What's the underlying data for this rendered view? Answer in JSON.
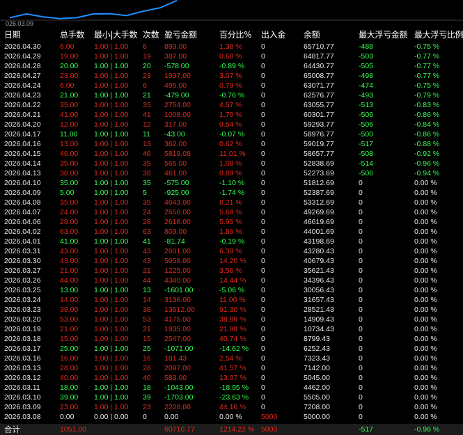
{
  "colors": {
    "profit": "#e02a1c",
    "loss": "#33ff4f",
    "neutral": "#e8e8e8",
    "background": "#000000",
    "line": "#1e90ff"
  },
  "chart": {
    "start_label": "026.03.09"
  },
  "headers": [
    "日期",
    "总手数",
    "最小|大手数",
    "次数",
    "盈亏金额",
    "百分比%",
    "出入金",
    "余额",
    "最大浮亏金额",
    "最大浮亏比例"
  ],
  "rows": [
    {
      "date": "2026.04.30",
      "lots": "6.00",
      "minmax": "1.00 | 1.00",
      "count": "6",
      "pnl": "893.00",
      "pct": "1.38 %",
      "io": "0",
      "balance": "65710.77",
      "maxdd": "-488",
      "maxddpct": "-0.75 %"
    },
    {
      "date": "2026.04.29",
      "lots": "19.00",
      "minmax": "1.00 | 1.00",
      "count": "19",
      "pnl": "387.00",
      "pct": "0.60 %",
      "io": "0",
      "balance": "64817.77",
      "maxdd": "-503",
      "maxddpct": "-0.77 %"
    },
    {
      "date": "2026.04.28",
      "lots": "20.00",
      "minmax": "1.00 | 1.00",
      "count": "20",
      "pnl": "-578.00",
      "pct": "-0.89 %",
      "io": "0",
      "balance": "64430.77",
      "maxdd": "-505",
      "maxddpct": "-0.77 %"
    },
    {
      "date": "2026.04.27",
      "lots": "23.00",
      "minmax": "1.00 | 1.00",
      "count": "23",
      "pnl": "1937.00",
      "pct": "3.07 %",
      "io": "0",
      "balance": "65008.77",
      "maxdd": "-498",
      "maxddpct": "-0.77 %"
    },
    {
      "date": "2026.04.24",
      "lots": "6.00",
      "minmax": "1.00 | 1.00",
      "count": "6",
      "pnl": "495.00",
      "pct": "0.79 %",
      "io": "0",
      "balance": "63071.77",
      "maxdd": "-474",
      "maxddpct": "-0.75 %"
    },
    {
      "date": "2026.04.23",
      "lots": "21.00",
      "minmax": "1.00 | 1.00",
      "count": "21",
      "pnl": "-479.00",
      "pct": "-0.76 %",
      "io": "0",
      "balance": "62576.77",
      "maxdd": "-493",
      "maxddpct": "-0.79 %"
    },
    {
      "date": "2026.04.22",
      "lots": "35.00",
      "minmax": "1.00 | 1.00",
      "count": "35",
      "pnl": "2754.00",
      "pct": "4.57 %",
      "io": "0",
      "balance": "63055.77",
      "maxdd": "-513",
      "maxddpct": "-0.83 %"
    },
    {
      "date": "2026.04.21",
      "lots": "41.00",
      "minmax": "1.00 | 1.00",
      "count": "41",
      "pnl": "1008.00",
      "pct": "1.70 %",
      "io": "0",
      "balance": "60301.77",
      "maxdd": "-506",
      "maxddpct": "-0.86 %"
    },
    {
      "date": "2026.04.20",
      "lots": "12.00",
      "minmax": "1.00 | 1.00",
      "count": "12",
      "pnl": "317.00",
      "pct": "0.54 %",
      "io": "0",
      "balance": "59293.77",
      "maxdd": "-506",
      "maxddpct": "-0.84 %"
    },
    {
      "date": "2026.04.17",
      "lots": "11.00",
      "minmax": "1.00 | 1.00",
      "count": "11",
      "pnl": "-43.00",
      "pct": "-0.07 %",
      "io": "0",
      "balance": "58976.77",
      "maxdd": "-500",
      "maxddpct": "-0.86 %"
    },
    {
      "date": "2026.04.16",
      "lots": "13.00",
      "minmax": "1.00 | 1.00",
      "count": "13",
      "pnl": "362.00",
      "pct": "0.62 %",
      "io": "0",
      "balance": "59019.77",
      "maxdd": "-517",
      "maxddpct": "-0.88 %"
    },
    {
      "date": "2026.04.15",
      "lots": "46.00",
      "minmax": "1.00 | 1.00",
      "count": "46",
      "pnl": "5819.08",
      "pct": "11.01 %",
      "io": "0",
      "balance": "58657.77",
      "maxdd": "-508",
      "maxddpct": "-0.92 %"
    },
    {
      "date": "2026.04.14",
      "lots": "35.00",
      "minmax": "1.00 | 1.00",
      "count": "35",
      "pnl": "565.00",
      "pct": "1.08 %",
      "io": "0",
      "balance": "52838.69",
      "maxdd": "-514",
      "maxddpct": "-0.96 %"
    },
    {
      "date": "2026.04.13",
      "lots": "38.00",
      "minmax": "1.00 | 1.00",
      "count": "38",
      "pnl": "461.00",
      "pct": "0.89 %",
      "io": "0",
      "balance": "52273.69",
      "maxdd": "-506",
      "maxddpct": "-0.94 %"
    },
    {
      "date": "2026.04.10",
      "lots": "35.00",
      "minmax": "1.00 | 1.00",
      "count": "35",
      "pnl": "-575.00",
      "pct": "-1.10 %",
      "io": "0",
      "balance": "51812.69",
      "maxdd": "0",
      "maxddpct": "0.00 %"
    },
    {
      "date": "2026.04.09",
      "lots": "5.00",
      "minmax": "1.00 | 1.00",
      "count": "5",
      "pnl": "-925.00",
      "pct": "-1.74 %",
      "io": "0",
      "balance": "52387.69",
      "maxdd": "0",
      "maxddpct": "0.00 %"
    },
    {
      "date": "2026.04.08",
      "lots": "35.00",
      "minmax": "1.00 | 1.00",
      "count": "35",
      "pnl": "4043.00",
      "pct": "8.21 %",
      "io": "0",
      "balance": "53312.69",
      "maxdd": "0",
      "maxddpct": "0.00 %"
    },
    {
      "date": "2026.04.07",
      "lots": "24.00",
      "minmax": "1.00 | 1.00",
      "count": "24",
      "pnl": "2650.00",
      "pct": "5.68 %",
      "io": "0",
      "balance": "49269.69",
      "maxdd": "0",
      "maxddpct": "0.00 %"
    },
    {
      "date": "2026.04.06",
      "lots": "28.00",
      "minmax": "1.00 | 1.00",
      "count": "28",
      "pnl": "2618.00",
      "pct": "5.95 %",
      "io": "0",
      "balance": "46619.69",
      "maxdd": "0",
      "maxddpct": "0.00 %"
    },
    {
      "date": "2026.04.02",
      "lots": "63.00",
      "minmax": "1.00 | 1.00",
      "count": "63",
      "pnl": "803.00",
      "pct": "1.86 %",
      "io": "0",
      "balance": "44001.69",
      "maxdd": "0",
      "maxddpct": "0.00 %"
    },
    {
      "date": "2026.04.01",
      "lots": "41.00",
      "minmax": "1.00 | 1.00",
      "count": "41",
      "pnl": "-81.74",
      "pct": "-0.19 %",
      "io": "0",
      "balance": "43198.69",
      "maxdd": "0",
      "maxddpct": "0.00 %"
    },
    {
      "date": "2026.03.31",
      "lots": "43.00",
      "minmax": "1.00 | 1.00",
      "count": "43",
      "pnl": "2601.00",
      "pct": "6.39 %",
      "io": "0",
      "balance": "43280.43",
      "maxdd": "0",
      "maxddpct": "0.00 %"
    },
    {
      "date": "2026.03.30",
      "lots": "43.00",
      "minmax": "1.00 | 1.00",
      "count": "43",
      "pnl": "5058.00",
      "pct": "14.20 %",
      "io": "0",
      "balance": "40679.43",
      "maxdd": "0",
      "maxddpct": "0.00 %"
    },
    {
      "date": "2026.03.27",
      "lots": "21.00",
      "minmax": "1.00 | 1.00",
      "count": "21",
      "pnl": "1225.00",
      "pct": "3.56 %",
      "io": "0",
      "balance": "35621.43",
      "maxdd": "0",
      "maxddpct": "0.00 %"
    },
    {
      "date": "2026.03.26",
      "lots": "44.00",
      "minmax": "1.00 | 1.00",
      "count": "44",
      "pnl": "4340.00",
      "pct": "14.44 %",
      "io": "0",
      "balance": "34396.43",
      "maxdd": "0",
      "maxddpct": "0.00 %"
    },
    {
      "date": "2026.03.25",
      "lots": "13.00",
      "minmax": "1.00 | 1.00",
      "count": "13",
      "pnl": "-1601.00",
      "pct": "-5.06 %",
      "io": "0",
      "balance": "30056.43",
      "maxdd": "0",
      "maxddpct": "0.00 %"
    },
    {
      "date": "2026.03.24",
      "lots": "14.00",
      "minmax": "1.00 | 1.00",
      "count": "14",
      "pnl": "3136.00",
      "pct": "11.00 %",
      "io": "0",
      "balance": "31657.43",
      "maxdd": "0",
      "maxddpct": "0.00 %"
    },
    {
      "date": "2026.03.23",
      "lots": "38.00",
      "minmax": "1.00 | 1.00",
      "count": "38",
      "pnl": "13612.00",
      "pct": "91.30 %",
      "io": "0",
      "balance": "28521.43",
      "maxdd": "0",
      "maxddpct": "0.00 %"
    },
    {
      "date": "2026.03.20",
      "lots": "53.00",
      "minmax": "1.00 | 1.00",
      "count": "53",
      "pnl": "4175.00",
      "pct": "38.89 %",
      "io": "0",
      "balance": "14909.43",
      "maxdd": "0",
      "maxddpct": "0.00 %"
    },
    {
      "date": "2026.03.19",
      "lots": "21.00",
      "minmax": "1.00 | 1.00",
      "count": "21",
      "pnl": "1935.00",
      "pct": "21.99 %",
      "io": "0",
      "balance": "10734.43",
      "maxdd": "0",
      "maxddpct": "0.00 %"
    },
    {
      "date": "2026.03.18",
      "lots": "15.00",
      "minmax": "1.00 | 1.00",
      "count": "15",
      "pnl": "2547.00",
      "pct": "40.74 %",
      "io": "0",
      "balance": "8799.43",
      "maxdd": "0",
      "maxddpct": "0.00 %"
    },
    {
      "date": "2026.03.17",
      "lots": "25.00",
      "minmax": "1.00 | 1.00",
      "count": "25",
      "pnl": "-1071.00",
      "pct": "-14.62 %",
      "io": "0",
      "balance": "6252.43",
      "maxdd": "0",
      "maxddpct": "0.00 %"
    },
    {
      "date": "2026.03.16",
      "lots": "16.00",
      "minmax": "1.00 | 1.00",
      "count": "16",
      "pnl": "181.43",
      "pct": "2.54 %",
      "io": "0",
      "balance": "7323.43",
      "maxdd": "0",
      "maxddpct": "0.00 %"
    },
    {
      "date": "2026.03.13",
      "lots": "28.00",
      "minmax": "1.00 | 1.00",
      "count": "28",
      "pnl": "2097.00",
      "pct": "41.57 %",
      "io": "0",
      "balance": "7142.00",
      "maxdd": "0",
      "maxddpct": "0.00 %"
    },
    {
      "date": "2026.03.12",
      "lots": "40.00",
      "minmax": "1.00 | 1.00",
      "count": "40",
      "pnl": "583.00",
      "pct": "13.07 %",
      "io": "0",
      "balance": "5045.00",
      "maxdd": "0",
      "maxddpct": "0.00 %"
    },
    {
      "date": "2026.03.11",
      "lots": "18.00",
      "minmax": "1.00 | 1.00",
      "count": "18",
      "pnl": "-1043.00",
      "pct": "-18.95 %",
      "io": "0",
      "balance": "4462.00",
      "maxdd": "0",
      "maxddpct": "0.00 %"
    },
    {
      "date": "2026.03.10",
      "lots": "39.00",
      "minmax": "1.00 | 1.00",
      "count": "39",
      "pnl": "-1703.00",
      "pct": "-23.63 %",
      "io": "0",
      "balance": "5505.00",
      "maxdd": "0",
      "maxddpct": "0.00 %"
    },
    {
      "date": "2026.03.09",
      "lots": "23.00",
      "minmax": "1.00 | 1.00",
      "count": "23",
      "pnl": "2208.00",
      "pct": "44.16 %",
      "io": "0",
      "balance": "7208.00",
      "maxdd": "0",
      "maxddpct": "0.00 %"
    },
    {
      "date": "2026.03.08",
      "lots": "0.00",
      "minmax": "0.00 | 0.00",
      "count": "0",
      "pnl": "0.00",
      "pct": "0.00 %",
      "io": "5000",
      "balance": "5000.00",
      "maxdd": "0",
      "maxddpct": "0.00 %"
    }
  ],
  "total": {
    "label": "合计",
    "lots": "1051.00",
    "pnl": "60710.77",
    "pct": "1214.22 %",
    "io": "5000",
    "maxdd": "-517",
    "maxddpct": "-0.96 %"
  }
}
